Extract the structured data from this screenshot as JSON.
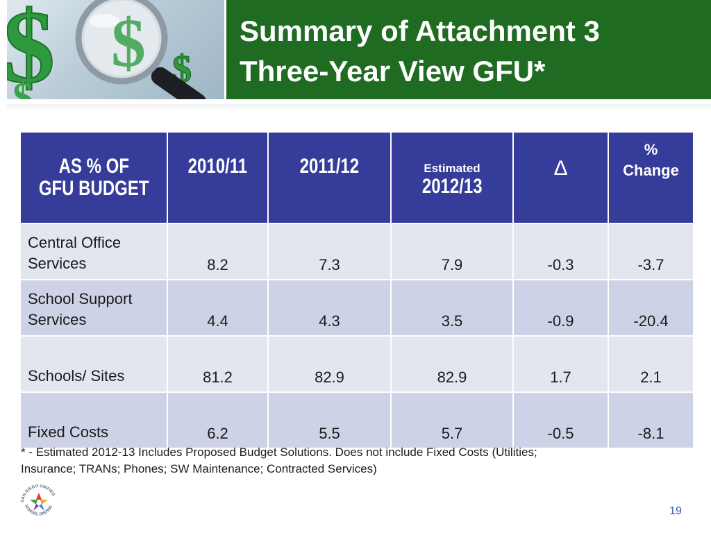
{
  "slide": {
    "title_line1": "Summary of Attachment 3",
    "title_line2": "Three-Year View GFU*",
    "page_number": "19"
  },
  "table": {
    "headers": {
      "label": [
        "AS % OF",
        "GFU BUDGET"
      ],
      "y1": "2010/11",
      "y2": "2011/12",
      "y3_prefix": "Estimated",
      "y3": "2012/13",
      "delta": "∆",
      "pct": [
        "%",
        "Change"
      ]
    },
    "rows": [
      {
        "label": [
          "Central Office",
          "Services"
        ],
        "v1": "8.2",
        "v2": "7.3",
        "v3": "7.9",
        "delta": "-0.3",
        "pct": "-3.7"
      },
      {
        "label": [
          "School Support",
          "Services"
        ],
        "v1": "4.4",
        "v2": "4.3",
        "v3": "3.5",
        "delta": "-0.9",
        "pct": "-20.4"
      },
      {
        "label": [
          "Schools/ Sites"
        ],
        "v1": "81.2",
        "v2": "82.9",
        "v3": "82.9",
        "delta": "1.7",
        "pct": "2.1"
      },
      {
        "label": [
          "Fixed Costs"
        ],
        "v1": "6.2",
        "v2": "5.5",
        "v3": "5.7",
        "delta": "-0.5",
        "pct": "-8.1"
      }
    ]
  },
  "footnote": {
    "line1": "* -  Estimated 2012-13 Includes Proposed Budget Solutions.  Does not include Fixed Costs (Utilities;",
    "line2": "Insurance; TRANs; Phones; SW Maintenance; Contracted Services)"
  },
  "logo": {
    "text": "SAN DIEGO UNIFIED SCHOOL DISTRICT",
    "icon": "star-logo-icon"
  },
  "colors": {
    "title_band": "#1f6b21",
    "table_header": "#363c9a",
    "row_light": "#e4e6ef",
    "row_alt": "#ced2e6",
    "dollar_green": "#2e9a3e"
  },
  "header_image": {
    "icons": [
      "dollar-sign-icon",
      "magnifying-glass-icon"
    ]
  }
}
